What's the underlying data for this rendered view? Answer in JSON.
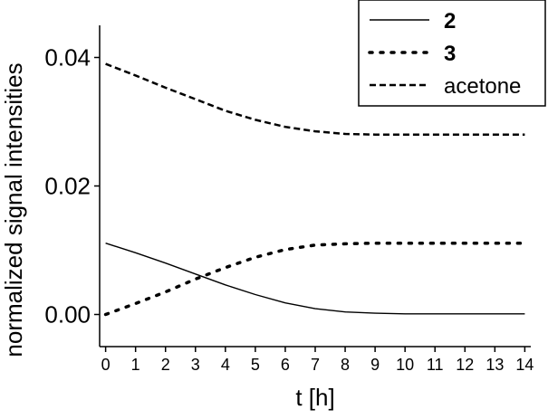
{
  "chart_data": {
    "type": "line",
    "xlabel": "t [h]",
    "ylabel": "normalized signal intensities",
    "xlim": [
      -0.2,
      14.2
    ],
    "ylim": [
      -0.005,
      0.045
    ],
    "xticks": [
      0,
      1,
      2,
      3,
      4,
      5,
      6,
      7,
      8,
      9,
      10,
      11,
      12,
      13,
      14
    ],
    "xtick_labels": [
      "0",
      "1",
      "2",
      "3",
      "4",
      "5",
      "6",
      "7",
      "8",
      "9",
      "10",
      "11",
      "12",
      "13",
      "14"
    ],
    "yticks": [
      0.0,
      0.02,
      0.04
    ],
    "ytick_labels": [
      "0.00",
      "0.02",
      "0.04"
    ],
    "legend_position": "top-right",
    "grid": false,
    "series": [
      {
        "name": "2",
        "style": "solid",
        "x": [
          0,
          1,
          2,
          3,
          4,
          5,
          6,
          7,
          8,
          9,
          10,
          11,
          12,
          13,
          14
        ],
        "y": [
          0.0111,
          0.0096,
          0.008,
          0.0063,
          0.0046,
          0.0031,
          0.0018,
          0.0009,
          0.0004,
          0.0002,
          0.0001,
          0.0001,
          0.0001,
          0.0001,
          0.0001
        ]
      },
      {
        "name": "3",
        "style": "dotted",
        "x": [
          0,
          1,
          2,
          3,
          4,
          5,
          6,
          7,
          8,
          9,
          10,
          11,
          12,
          13,
          14
        ],
        "y": [
          0.0,
          0.0017,
          0.0035,
          0.0055,
          0.0073,
          0.0089,
          0.0101,
          0.0108,
          0.011,
          0.0111,
          0.0111,
          0.0111,
          0.0111,
          0.0111,
          0.0111
        ]
      },
      {
        "name": "acetone",
        "style": "dashed",
        "x": [
          0,
          1,
          2,
          3,
          4,
          5,
          6,
          7,
          8,
          9,
          10,
          11,
          12,
          13,
          14
        ],
        "y": [
          0.039,
          0.0372,
          0.0353,
          0.0335,
          0.0317,
          0.0303,
          0.0292,
          0.0285,
          0.0281,
          0.028,
          0.028,
          0.028,
          0.028,
          0.028,
          0.028
        ]
      }
    ]
  },
  "colors": {
    "axis": "#000000",
    "line": "#000000",
    "background": "#ffffff"
  }
}
